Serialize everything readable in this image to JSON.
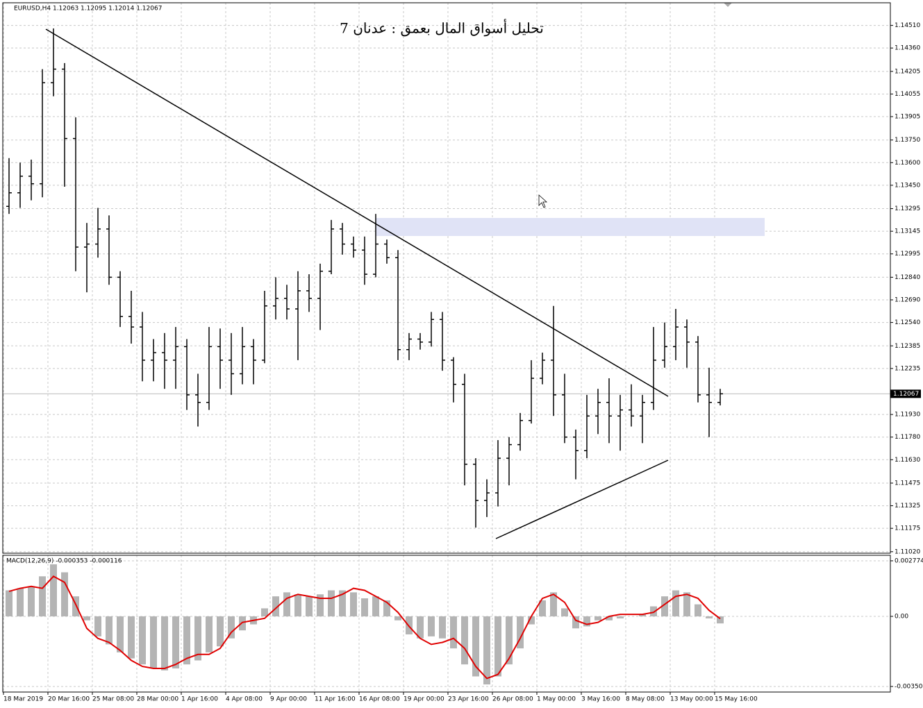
{
  "chart_data": [
    {
      "type": "ohlc",
      "title": "تحليل أسواق المال بعمق : عدنان 7",
      "subtitle": "EURUSD,H4  1.12063 1.12095 1.12014 1.12067",
      "color": "#000000",
      "grid": true,
      "last_price": 1.12067,
      "categories": [
        "18 Mar 2019",
        null,
        null,
        null,
        "20 Mar 16:00",
        null,
        null,
        null,
        "25 Mar 08:00",
        null,
        null,
        null,
        "28 Mar 00:00",
        null,
        null,
        null,
        "1 Apr 16:00",
        null,
        null,
        null,
        "4 Apr 08:00",
        null,
        null,
        null,
        "9 Apr 00:00",
        null,
        null,
        null,
        "11 Apr 16:00",
        null,
        null,
        null,
        "16 Apr 08:00",
        null,
        null,
        null,
        "19 Apr 00:00",
        null,
        null,
        null,
        "23 Apr 16:00",
        null,
        null,
        null,
        "26 Apr 08:00",
        null,
        null,
        null,
        "1 May 00:00",
        null,
        null,
        null,
        "3 May 16:00",
        null,
        null,
        null,
        "8 May 08:00",
        null,
        null,
        null,
        "13 May 00:00",
        null,
        null,
        null,
        "15 May 16:00"
      ],
      "open": [
        1.1331,
        1.134,
        1.1351,
        1.1346,
        1.1413,
        1.1422,
        1.1376,
        1.1304,
        1.1306,
        1.1316,
        1.1284,
        1.1258,
        1.1251,
        1.1229,
        1.1234,
        1.1229,
        1.1238,
        1.1206,
        1.1201,
        1.1238,
        1.1229,
        1.122,
        1.1238,
        1.1229,
        1.1265,
        1.127,
        1.1263,
        1.1275,
        1.127,
        1.1288,
        1.1316,
        1.1306,
        1.1302,
        1.1286,
        1.1306,
        1.1297,
        1.1236,
        1.1243,
        1.1241,
        1.1256,
        1.1229,
        1.1213,
        1.116,
        1.1136,
        1.1141,
        1.1164,
        1.1173,
        1.1189,
        1.1217,
        1.1229,
        1.1206,
        1.1178,
        1.1169,
        1.1192,
        1.1201,
        1.1192,
        1.1196,
        1.1192,
        1.1201,
        1.1229,
        1.1238,
        1.1251,
        1.1241,
        1.1206,
        1.1201
      ],
      "high": [
        1.1363,
        1.136,
        1.1362,
        1.1422,
        1.1449,
        1.1426,
        1.139,
        1.132,
        1.133,
        1.1325,
        1.1288,
        1.1275,
        1.1261,
        1.1243,
        1.1247,
        1.1251,
        1.1243,
        1.122,
        1.1251,
        1.125,
        1.1247,
        1.1251,
        1.1243,
        1.1275,
        1.1284,
        1.1279,
        1.1288,
        1.1286,
        1.1293,
        1.1322,
        1.132,
        1.1311,
        1.1311,
        1.1326,
        1.1309,
        1.1302,
        1.1247,
        1.1247,
        1.1261,
        1.1261,
        1.1231,
        1.122,
        1.1164,
        1.115,
        1.1176,
        1.1178,
        1.1194,
        1.1229,
        1.1234,
        1.1265,
        1.122,
        1.1183,
        1.1206,
        1.121,
        1.1217,
        1.1206,
        1.1213,
        1.1206,
        1.1251,
        1.1254,
        1.1263,
        1.1256,
        1.1245,
        1.1224,
        1.121
      ],
      "low": [
        1.1326,
        1.133,
        1.1335,
        1.1337,
        1.1404,
        1.1344,
        1.1288,
        1.1274,
        1.1297,
        1.1279,
        1.1251,
        1.124,
        1.1215,
        1.1215,
        1.121,
        1.121,
        1.1196,
        1.1185,
        1.1196,
        1.121,
        1.1206,
        1.1213,
        1.1213,
        1.1227,
        1.1256,
        1.1256,
        1.1229,
        1.1261,
        1.1249,
        1.1286,
        1.1299,
        1.1297,
        1.1279,
        1.1284,
        1.1293,
        1.1229,
        1.1229,
        1.1236,
        1.1238,
        1.1222,
        1.1201,
        1.1146,
        1.1118,
        1.1125,
        1.1132,
        1.1146,
        1.1169,
        1.1187,
        1.1213,
        1.1192,
        1.1174,
        1.115,
        1.1164,
        1.118,
        1.1174,
        1.1169,
        1.1185,
        1.1174,
        1.1196,
        1.1224,
        1.1229,
        1.1224,
        1.1201,
        1.1178,
        1.1199
      ],
      "close": [
        1.134,
        1.1351,
        1.1346,
        1.1413,
        1.1422,
        1.1376,
        1.1304,
        1.1306,
        1.1316,
        1.1284,
        1.1258,
        1.1251,
        1.1229,
        1.1234,
        1.1229,
        1.1238,
        1.1206,
        1.1201,
        1.1238,
        1.1229,
        1.122,
        1.1238,
        1.1229,
        1.1265,
        1.127,
        1.1263,
        1.1275,
        1.127,
        1.1288,
        1.1316,
        1.1306,
        1.1302,
        1.1286,
        1.1306,
        1.1297,
        1.1236,
        1.1243,
        1.1241,
        1.1256,
        1.1229,
        1.1213,
        1.116,
        1.1136,
        1.1141,
        1.1164,
        1.1173,
        1.1189,
        1.1217,
        1.1229,
        1.1206,
        1.1178,
        1.1169,
        1.1192,
        1.1201,
        1.1192,
        1.1196,
        1.1192,
        1.1201,
        1.1229,
        1.1238,
        1.1251,
        1.1241,
        1.1206,
        1.1201,
        1.12067
      ],
      "ylim": [
        1.1101,
        1.1466
      ],
      "yticks": [
        {
          "value": 1.1451,
          "label": "1.14510"
        },
        {
          "value": 1.1436,
          "label": "1.14360"
        },
        {
          "value": 1.14205,
          "label": "1.14205"
        },
        {
          "value": 1.14055,
          "label": "1.14055"
        },
        {
          "value": 1.13905,
          "label": "1.13905"
        },
        {
          "value": 1.1375,
          "label": "1.13750"
        },
        {
          "value": 1.136,
          "label": "1.13600"
        },
        {
          "value": 1.1345,
          "label": "1.13450"
        },
        {
          "value": 1.13295,
          "label": "1.13295"
        },
        {
          "value": 1.13145,
          "label": "1.13145"
        },
        {
          "value": 1.12995,
          "label": "1.12995"
        },
        {
          "value": 1.1284,
          "label": "1.12840"
        },
        {
          "value": 1.1269,
          "label": "1.12690"
        },
        {
          "value": 1.1254,
          "label": "1.12540"
        },
        {
          "value": 1.12385,
          "label": "1.12385"
        },
        {
          "value": 1.12235,
          "label": "1.12235"
        },
        {
          "value": 1.1193,
          "label": "1.11930"
        },
        {
          "value": 1.1178,
          "label": "1.11780"
        },
        {
          "value": 1.1163,
          "label": "1.11630"
        },
        {
          "value": 1.11475,
          "label": "1.11475"
        },
        {
          "value": 1.11325,
          "label": "1.11325"
        },
        {
          "value": 1.11175,
          "label": "1.11175"
        },
        {
          "value": 1.1102,
          "label": "1.11020"
        }
      ]
    },
    {
      "type": "macd",
      "title": "MACD(12,26,9) -0.000353 -0.000116",
      "histogram": {
        "color": "#b4b4b4",
        "values": [
          0.0013,
          0.0014,
          0.0015,
          0.002,
          0.0026,
          0.0022,
          0.001,
          -0.0002,
          -0.001,
          -0.0014,
          -0.0018,
          -0.0021,
          -0.0024,
          -0.0026,
          -0.0027,
          -0.0026,
          -0.0024,
          -0.0022,
          -0.0018,
          -0.0015,
          -0.0011,
          -0.0007,
          -0.0004,
          0.0004,
          0.001,
          0.0012,
          0.0011,
          0.001,
          0.0011,
          0.0013,
          0.0013,
          0.0012,
          0.0009,
          0.001,
          0.0008,
          -0.0002,
          -0.0009,
          -0.0011,
          -0.001,
          -0.0011,
          -0.0016,
          -0.0024,
          -0.003,
          -0.0034,
          -0.003,
          -0.0024,
          -0.0016,
          -0.0004,
          0.0008,
          0.0012,
          0.0004,
          -0.0006,
          -0.0005,
          -0.0002,
          -0.0002,
          -0.0001,
          0,
          0.0001,
          0.0005,
          0.001,
          0.0013,
          0.0012,
          0.0006,
          -0.0001,
          -0.000353
        ]
      },
      "signal": {
        "color": "#e00000",
        "values": [
          0.00125,
          0.0014,
          0.0015,
          0.0014,
          0.002,
          0.0017,
          0.0006,
          -0.0006,
          -0.0011,
          -0.0013,
          -0.0017,
          -0.0022,
          -0.0025,
          -0.0026,
          -0.0026,
          -0.0024,
          -0.0021,
          -0.0019,
          -0.0019,
          -0.0016,
          -0.0008,
          -0.0003,
          -0.0002,
          -0.0001,
          0.0004,
          0.0009,
          0.0011,
          0.001,
          0.0009,
          0.0009,
          0.0011,
          0.0014,
          0.0013,
          0.001,
          0.0007,
          0.0002,
          -0.0005,
          -0.0011,
          -0.0014,
          -0.0013,
          -0.0011,
          -0.0016,
          -0.0025,
          -0.0031,
          -0.0029,
          -0.0021,
          -0.0011,
          0,
          0.0009,
          0.0011,
          0.0007,
          -0.0002,
          -0.0004,
          -0.0003,
          0,
          0.0001,
          0.0001,
          0.0001,
          0.0002,
          0.0006,
          0.001,
          0.0011,
          0.0009,
          0.0003,
          -0.000116
        ]
      },
      "ylim": [
        -0.00378,
        0.00305
      ],
      "yticks": [
        0.002774,
        {
          "value": 0,
          "label": "0.00"
        },
        -0.003502
      ]
    }
  ]
}
